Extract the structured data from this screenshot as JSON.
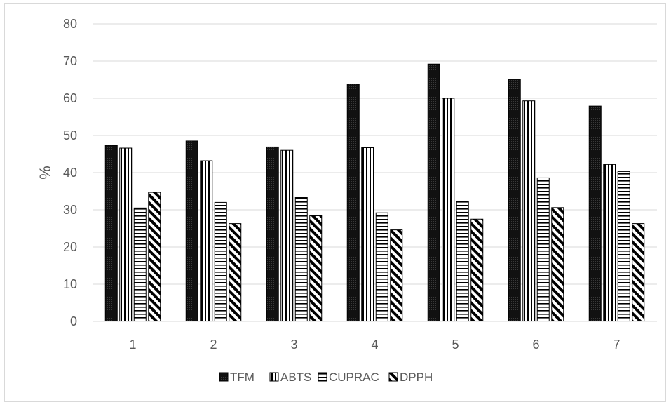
{
  "chart_data": {
    "type": "bar",
    "title": "",
    "xlabel": "",
    "ylabel": "%",
    "ylim": [
      0,
      80
    ],
    "yticks": [
      "0",
      "10",
      "20",
      "30",
      "40",
      "50",
      "60",
      "70",
      "80"
    ],
    "categories": [
      "1",
      "2",
      "3",
      "4",
      "5",
      "6",
      "7"
    ],
    "grid": true,
    "legend_position": "bottom",
    "series": [
      {
        "name": "TFM",
        "pattern": "solid",
        "values": [
          47.3,
          48.5,
          46.9,
          63.8,
          69.2,
          65.1,
          57.9
        ]
      },
      {
        "name": "ABTS",
        "pattern": "vertical-lines",
        "values": [
          46.6,
          43.2,
          46.0,
          46.7,
          60.0,
          59.3,
          42.2
        ]
      },
      {
        "name": "CUPRAC",
        "pattern": "horizontal-lines",
        "values": [
          30.5,
          32.0,
          33.3,
          29.2,
          32.2,
          38.6,
          40.3
        ]
      },
      {
        "name": "DPPH",
        "pattern": "diagonal-lines",
        "values": [
          34.7,
          26.3,
          28.4,
          24.6,
          27.5,
          30.6,
          26.3
        ]
      }
    ],
    "colors": {
      "mark": "#000000",
      "fill": "#ffffff",
      "grid": "#d9d9d9",
      "text": "#595959"
    }
  }
}
